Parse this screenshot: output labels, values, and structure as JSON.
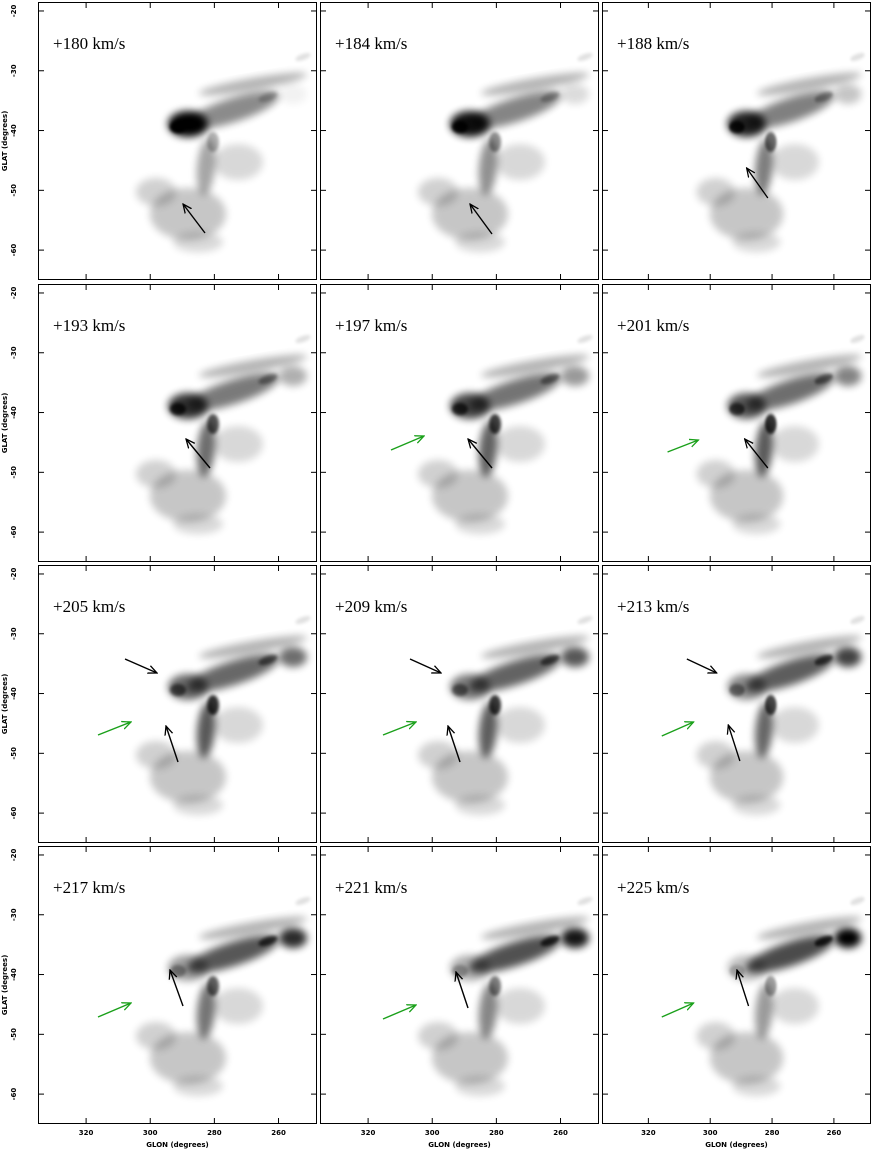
{
  "panels": [
    {
      "label": "+180 km/s"
    },
    {
      "label": "+184 km/s"
    },
    {
      "label": "+188 km/s"
    },
    {
      "label": "+193 km/s"
    },
    {
      "label": "+197 km/s"
    },
    {
      "label": "+201 km/s"
    },
    {
      "label": "+205 km/s"
    },
    {
      "label": "+209 km/s"
    },
    {
      "label": "+213 km/s"
    },
    {
      "label": "+217 km/s"
    },
    {
      "label": "+221 km/s"
    },
    {
      "label": "+225 km/s"
    }
  ],
  "axes": {
    "x_title": "GLON (degrees)",
    "y_title": "GLAT (degrees)",
    "xlim": [
      335,
      248
    ],
    "ylim": [
      -18.5,
      -65
    ],
    "xticks": [
      320,
      300,
      280,
      260
    ],
    "yticks": [
      -20,
      -30,
      -40,
      -50,
      -60
    ]
  }
}
